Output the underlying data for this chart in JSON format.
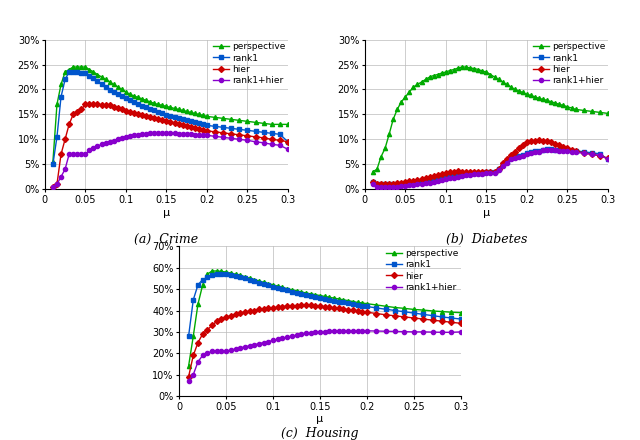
{
  "mu_crime": [
    0.01,
    0.015,
    0.02,
    0.025,
    0.03,
    0.035,
    0.04,
    0.045,
    0.05,
    0.055,
    0.06,
    0.065,
    0.07,
    0.075,
    0.08,
    0.085,
    0.09,
    0.095,
    0.1,
    0.105,
    0.11,
    0.115,
    0.12,
    0.125,
    0.13,
    0.135,
    0.14,
    0.145,
    0.15,
    0.155,
    0.16,
    0.165,
    0.17,
    0.175,
    0.18,
    0.185,
    0.19,
    0.195,
    0.2,
    0.21,
    0.22,
    0.23,
    0.24,
    0.25,
    0.26,
    0.27,
    0.28,
    0.29,
    0.3
  ],
  "crime_perspective": [
    0.055,
    0.17,
    0.21,
    0.235,
    0.24,
    0.245,
    0.245,
    0.245,
    0.245,
    0.24,
    0.235,
    0.23,
    0.225,
    0.22,
    0.215,
    0.21,
    0.205,
    0.2,
    0.195,
    0.19,
    0.187,
    0.184,
    0.181,
    0.178,
    0.175,
    0.172,
    0.17,
    0.168,
    0.166,
    0.164,
    0.162,
    0.16,
    0.158,
    0.156,
    0.154,
    0.152,
    0.15,
    0.148,
    0.146,
    0.144,
    0.142,
    0.14,
    0.138,
    0.136,
    0.134,
    0.132,
    0.13,
    0.13,
    0.13
  ],
  "crime_rank1": [
    0.05,
    0.105,
    0.185,
    0.22,
    0.235,
    0.235,
    0.235,
    0.234,
    0.233,
    0.228,
    0.222,
    0.216,
    0.21,
    0.204,
    0.198,
    0.194,
    0.19,
    0.186,
    0.182,
    0.178,
    0.174,
    0.17,
    0.167,
    0.164,
    0.161,
    0.158,
    0.155,
    0.152,
    0.149,
    0.146,
    0.144,
    0.142,
    0.14,
    0.138,
    0.136,
    0.134,
    0.132,
    0.13,
    0.128,
    0.126,
    0.124,
    0.122,
    0.12,
    0.118,
    0.116,
    0.114,
    0.112,
    0.11,
    0.095
  ],
  "crime_hier": [
    0.005,
    0.01,
    0.07,
    0.1,
    0.13,
    0.15,
    0.155,
    0.16,
    0.17,
    0.17,
    0.17,
    0.17,
    0.168,
    0.168,
    0.168,
    0.165,
    0.163,
    0.16,
    0.157,
    0.155,
    0.153,
    0.151,
    0.149,
    0.147,
    0.145,
    0.143,
    0.141,
    0.139,
    0.137,
    0.135,
    0.133,
    0.131,
    0.129,
    0.127,
    0.125,
    0.123,
    0.121,
    0.119,
    0.117,
    0.115,
    0.113,
    0.111,
    0.109,
    0.107,
    0.105,
    0.103,
    0.1,
    0.098,
    0.095
  ],
  "crime_rank1hier": [
    0.005,
    0.01,
    0.025,
    0.04,
    0.07,
    0.07,
    0.07,
    0.07,
    0.07,
    0.078,
    0.082,
    0.086,
    0.09,
    0.092,
    0.095,
    0.097,
    0.1,
    0.102,
    0.104,
    0.106,
    0.108,
    0.109,
    0.11,
    0.111,
    0.112,
    0.113,
    0.113,
    0.113,
    0.113,
    0.112,
    0.112,
    0.111,
    0.111,
    0.11,
    0.11,
    0.109,
    0.109,
    0.108,
    0.108,
    0.106,
    0.104,
    0.102,
    0.1,
    0.098,
    0.095,
    0.093,
    0.09,
    0.088,
    0.08
  ],
  "mu_diabetes": [
    0.01,
    0.015,
    0.02,
    0.025,
    0.03,
    0.035,
    0.04,
    0.045,
    0.05,
    0.055,
    0.06,
    0.065,
    0.07,
    0.075,
    0.08,
    0.085,
    0.09,
    0.095,
    0.1,
    0.105,
    0.11,
    0.115,
    0.12,
    0.125,
    0.13,
    0.135,
    0.14,
    0.145,
    0.15,
    0.155,
    0.16,
    0.165,
    0.17,
    0.175,
    0.18,
    0.185,
    0.19,
    0.195,
    0.2,
    0.205,
    0.21,
    0.215,
    0.22,
    0.225,
    0.23,
    0.235,
    0.24,
    0.245,
    0.25,
    0.255,
    0.26,
    0.27,
    0.28,
    0.29,
    0.3
  ],
  "diabetes_perspective": [
    0.035,
    0.04,
    0.065,
    0.082,
    0.11,
    0.14,
    0.16,
    0.175,
    0.185,
    0.195,
    0.205,
    0.21,
    0.215,
    0.22,
    0.225,
    0.228,
    0.23,
    0.233,
    0.235,
    0.238,
    0.24,
    0.243,
    0.245,
    0.245,
    0.243,
    0.242,
    0.24,
    0.237,
    0.235,
    0.23,
    0.225,
    0.22,
    0.215,
    0.21,
    0.205,
    0.2,
    0.197,
    0.194,
    0.19,
    0.188,
    0.185,
    0.182,
    0.18,
    0.178,
    0.175,
    0.173,
    0.17,
    0.168,
    0.165,
    0.163,
    0.16,
    0.158,
    0.156,
    0.154,
    0.152
  ],
  "diabetes_rank1": [
    0.015,
    0.01,
    0.01,
    0.01,
    0.01,
    0.01,
    0.01,
    0.01,
    0.012,
    0.013,
    0.014,
    0.015,
    0.016,
    0.017,
    0.018,
    0.02,
    0.022,
    0.024,
    0.026,
    0.027,
    0.028,
    0.029,
    0.03,
    0.031,
    0.032,
    0.032,
    0.033,
    0.033,
    0.034,
    0.034,
    0.035,
    0.04,
    0.05,
    0.055,
    0.062,
    0.065,
    0.067,
    0.069,
    0.072,
    0.074,
    0.076,
    0.077,
    0.079,
    0.08,
    0.08,
    0.079,
    0.079,
    0.078,
    0.078,
    0.077,
    0.077,
    0.075,
    0.073,
    0.071,
    0.06
  ],
  "diabetes_hier": [
    0.015,
    0.01,
    0.01,
    0.01,
    0.01,
    0.01,
    0.012,
    0.013,
    0.015,
    0.016,
    0.017,
    0.018,
    0.02,
    0.022,
    0.025,
    0.027,
    0.029,
    0.031,
    0.033,
    0.034,
    0.035,
    0.036,
    0.035,
    0.034,
    0.034,
    0.034,
    0.034,
    0.034,
    0.034,
    0.034,
    0.035,
    0.04,
    0.053,
    0.06,
    0.068,
    0.075,
    0.082,
    0.088,
    0.094,
    0.096,
    0.097,
    0.098,
    0.097,
    0.097,
    0.094,
    0.091,
    0.088,
    0.085,
    0.082,
    0.079,
    0.076,
    0.073,
    0.07,
    0.067,
    0.062
  ],
  "diabetes_rank1hier": [
    0.01,
    0.005,
    0.005,
    0.005,
    0.005,
    0.005,
    0.005,
    0.006,
    0.007,
    0.008,
    0.009,
    0.01,
    0.011,
    0.012,
    0.013,
    0.015,
    0.017,
    0.019,
    0.021,
    0.022,
    0.023,
    0.025,
    0.027,
    0.028,
    0.029,
    0.03,
    0.031,
    0.031,
    0.032,
    0.032,
    0.033,
    0.038,
    0.047,
    0.053,
    0.06,
    0.063,
    0.065,
    0.067,
    0.07,
    0.072,
    0.074,
    0.075,
    0.078,
    0.079,
    0.079,
    0.078,
    0.077,
    0.076,
    0.076,
    0.075,
    0.074,
    0.072,
    0.07,
    0.068,
    0.06
  ],
  "mu_housing": [
    0.01,
    0.015,
    0.02,
    0.025,
    0.03,
    0.035,
    0.04,
    0.045,
    0.05,
    0.055,
    0.06,
    0.065,
    0.07,
    0.075,
    0.08,
    0.085,
    0.09,
    0.095,
    0.1,
    0.105,
    0.11,
    0.115,
    0.12,
    0.125,
    0.13,
    0.135,
    0.14,
    0.145,
    0.15,
    0.155,
    0.16,
    0.165,
    0.17,
    0.175,
    0.18,
    0.185,
    0.19,
    0.195,
    0.2,
    0.21,
    0.22,
    0.23,
    0.24,
    0.25,
    0.26,
    0.27,
    0.28,
    0.29,
    0.3
  ],
  "housing_perspective": [
    0.14,
    0.28,
    0.43,
    0.52,
    0.57,
    0.585,
    0.585,
    0.583,
    0.58,
    0.575,
    0.57,
    0.565,
    0.558,
    0.551,
    0.545,
    0.538,
    0.532,
    0.526,
    0.52,
    0.514,
    0.508,
    0.502,
    0.497,
    0.492,
    0.487,
    0.482,
    0.478,
    0.474,
    0.47,
    0.466,
    0.462,
    0.458,
    0.454,
    0.45,
    0.446,
    0.442,
    0.438,
    0.435,
    0.432,
    0.426,
    0.42,
    0.414,
    0.41,
    0.405,
    0.402,
    0.398,
    0.395,
    0.392,
    0.39
  ],
  "housing_rank1": [
    0.28,
    0.45,
    0.52,
    0.545,
    0.555,
    0.565,
    0.57,
    0.572,
    0.572,
    0.567,
    0.562,
    0.556,
    0.55,
    0.544,
    0.537,
    0.531,
    0.524,
    0.518,
    0.512,
    0.506,
    0.5,
    0.494,
    0.488,
    0.483,
    0.478,
    0.473,
    0.468,
    0.463,
    0.458,
    0.454,
    0.45,
    0.446,
    0.442,
    0.438,
    0.434,
    0.43,
    0.426,
    0.422,
    0.419,
    0.412,
    0.406,
    0.4,
    0.394,
    0.388,
    0.382,
    0.376,
    0.37,
    0.365,
    0.36
  ],
  "housing_hier": [
    0.09,
    0.19,
    0.25,
    0.29,
    0.31,
    0.33,
    0.35,
    0.36,
    0.37,
    0.375,
    0.382,
    0.388,
    0.393,
    0.397,
    0.4,
    0.405,
    0.408,
    0.411,
    0.413,
    0.415,
    0.418,
    0.42,
    0.422,
    0.423,
    0.424,
    0.425,
    0.424,
    0.422,
    0.42,
    0.418,
    0.415,
    0.412,
    0.41,
    0.407,
    0.404,
    0.401,
    0.398,
    0.395,
    0.392,
    0.386,
    0.38,
    0.375,
    0.37,
    0.365,
    0.36,
    0.355,
    0.35,
    0.345,
    0.34
  ],
  "housing_rank1hier": [
    0.07,
    0.1,
    0.16,
    0.19,
    0.2,
    0.21,
    0.21,
    0.21,
    0.21,
    0.215,
    0.22,
    0.225,
    0.23,
    0.235,
    0.24,
    0.245,
    0.25,
    0.255,
    0.26,
    0.265,
    0.27,
    0.275,
    0.28,
    0.285,
    0.29,
    0.293,
    0.296,
    0.298,
    0.3,
    0.301,
    0.302,
    0.303,
    0.304,
    0.305,
    0.305,
    0.305,
    0.305,
    0.305,
    0.305,
    0.304,
    0.303,
    0.302,
    0.301,
    0.3,
    0.3,
    0.299,
    0.298,
    0.298,
    0.3
  ],
  "color_perspective": "#00aa00",
  "color_rank1": "#0055cc",
  "color_hier": "#cc0000",
  "color_rank1hier": "#8800cc",
  "marker_perspective": "^",
  "marker_rank1": "s",
  "marker_hier": "D",
  "marker_rank1hier": "o",
  "markersize": 3,
  "linewidth": 1.0,
  "grid_color": "#bbbbbb",
  "subtitle_a": "(a)  Crime",
  "subtitle_b": "(b)  Diabetes",
  "subtitle_c": "(c)  Housing",
  "xlabel": "μ",
  "crime_ylim": [
    0.0,
    0.3
  ],
  "diabetes_ylim": [
    0.0,
    0.3
  ],
  "housing_ylim": [
    0.0,
    0.7
  ],
  "crime_yticks": [
    0.0,
    0.05,
    0.1,
    0.15,
    0.2,
    0.25,
    0.3
  ],
  "diabetes_yticks": [
    0.0,
    0.05,
    0.1,
    0.15,
    0.2,
    0.25,
    0.3
  ],
  "housing_yticks": [
    0.0,
    0.1,
    0.2,
    0.3,
    0.4,
    0.5,
    0.6,
    0.7
  ],
  "xticks": [
    0.0,
    0.05,
    0.1,
    0.15,
    0.2,
    0.25,
    0.3
  ]
}
